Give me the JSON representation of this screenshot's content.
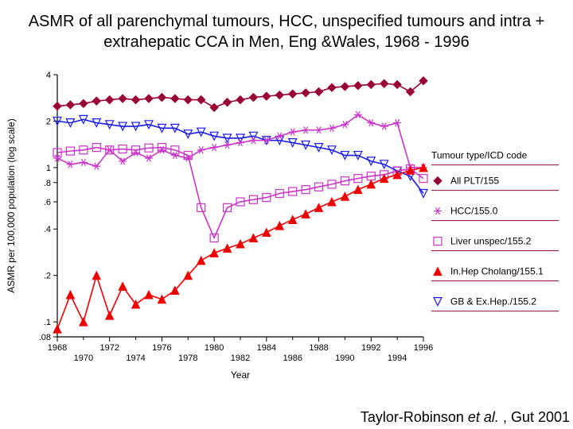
{
  "title": "ASMR of all parenchymal tumours, HCC, unspecified tumours and intra + extrahepatic CCA in Men, Eng &Wales, 1968 - 1996",
  "citation_prefix": "Taylor-Robinson ",
  "citation_ital": "et al. ",
  "citation_suffix": ", Gut 2001",
  "colors": {
    "axis": "#000000",
    "background": "#ffffff",
    "legend_text": "#000000",
    "legend_line": "#990033",
    "all_plt": "#990033",
    "hcc": "#cc33cc",
    "unspec": "#cc33cc",
    "cholang": "#ee0000",
    "gb": "#1a1aee"
  },
  "axis": {
    "xlabel": "Year",
    "ylabel": "ASMR per 100,000 population (log scale)",
    "axis_fontsize": 12,
    "tick_fontsize": 11,
    "xmin": 1968,
    "xmax": 1996,
    "xticks_major": [
      1968,
      1972,
      1976,
      1980,
      1984,
      1988,
      1992,
      1996
    ],
    "xticks_minor": [
      1970,
      1974,
      1978,
      1982,
      1986,
      1990,
      1994
    ],
    "yticks": [
      0.08,
      0.1,
      0.2,
      0.4,
      0.6,
      0.8,
      1,
      2,
      4
    ],
    "ytick_labels": [
      ".08",
      ".1",
      ".2",
      ".4",
      ".6",
      ".8",
      "1",
      "2",
      "4"
    ]
  },
  "legend": {
    "title": "Tumour type/ICD code",
    "items": [
      {
        "marker": "diamond-filled",
        "label": "All PLT/155",
        "color": "#990033"
      },
      {
        "marker": "asterisk",
        "label": "HCC/155.0",
        "color": "#cc33cc"
      },
      {
        "marker": "square-open",
        "label": "Liver unspec/155.2",
        "color": "#cc33cc"
      },
      {
        "marker": "triangle-filled",
        "label": "In.Hep Cholang/155.1",
        "color": "#ee0000"
      },
      {
        "marker": "triangle-down-open",
        "label": "GB & Ex.Hep./155.2",
        "color": "#1a1aee"
      }
    ]
  },
  "series": {
    "years": [
      1968,
      1969,
      1970,
      1971,
      1972,
      1973,
      1974,
      1975,
      1976,
      1977,
      1978,
      1979,
      1980,
      1981,
      1982,
      1983,
      1984,
      1985,
      1986,
      1987,
      1988,
      1989,
      1990,
      1991,
      1992,
      1993,
      1994,
      1995,
      1996
    ],
    "all_plt": [
      2.5,
      2.55,
      2.6,
      2.7,
      2.75,
      2.8,
      2.75,
      2.8,
      2.85,
      2.8,
      2.75,
      2.75,
      2.45,
      2.65,
      2.75,
      2.85,
      2.9,
      2.95,
      3.0,
      3.05,
      3.1,
      3.3,
      3.35,
      3.4,
      3.45,
      3.5,
      3.45,
      3.1,
      3.65
    ],
    "hcc": [
      1.15,
      1.05,
      1.08,
      1.02,
      1.3,
      1.1,
      1.25,
      1.15,
      1.3,
      1.2,
      1.15,
      1.3,
      1.35,
      1.4,
      1.45,
      1.5,
      1.5,
      1.6,
      1.7,
      1.75,
      1.75,
      1.8,
      1.9,
      2.2,
      1.95,
      1.85,
      1.95,
      1.0,
      1.0
    ],
    "unspec": [
      1.25,
      1.28,
      1.3,
      1.35,
      1.3,
      1.32,
      1.3,
      1.34,
      1.35,
      1.3,
      1.2,
      0.55,
      0.35,
      0.55,
      0.6,
      0.62,
      0.64,
      0.68,
      0.7,
      0.72,
      0.75,
      0.78,
      0.82,
      0.85,
      0.88,
      0.9,
      0.95,
      0.98,
      0.85
    ],
    "cholang": [
      0.09,
      0.15,
      0.1,
      0.2,
      0.11,
      0.17,
      0.13,
      0.15,
      0.14,
      0.16,
      0.2,
      0.25,
      0.28,
      0.3,
      0.32,
      0.35,
      0.38,
      0.42,
      0.46,
      0.5,
      0.55,
      0.6,
      0.65,
      0.72,
      0.78,
      0.85,
      0.9,
      0.96,
      1.0
    ],
    "gb": [
      2.0,
      1.95,
      2.05,
      1.95,
      1.9,
      1.85,
      1.85,
      1.9,
      1.8,
      1.8,
      1.65,
      1.7,
      1.6,
      1.55,
      1.55,
      1.6,
      1.5,
      1.5,
      1.45,
      1.4,
      1.35,
      1.3,
      1.2,
      1.2,
      1.1,
      1.05,
      0.95,
      0.88,
      0.68
    ]
  },
  "chart_style": {
    "line_width": 1.6,
    "marker_size": 5,
    "axis_line_width": 1.2
  }
}
